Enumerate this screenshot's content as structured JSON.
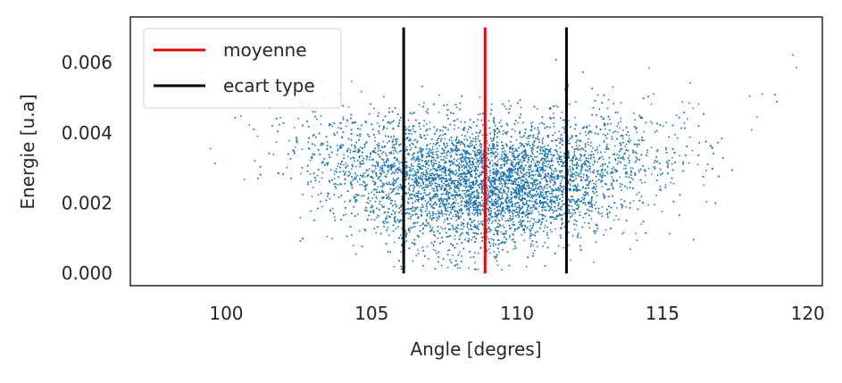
{
  "chart_data": {
    "type": "scatter",
    "title": "",
    "xlabel": "Angle [degres]",
    "ylabel": "Energie [u.a]",
    "xlim": [
      96.7,
      120.5
    ],
    "ylim": [
      -0.00035,
      0.0073
    ],
    "xticks": [
      100,
      105,
      110,
      115,
      120
    ],
    "xtick_labels": [
      "100",
      "105",
      "110",
      "115",
      "120"
    ],
    "yticks": [
      0.0,
      0.002,
      0.004,
      0.006
    ],
    "ytick_labels": [
      "0.000",
      "0.002",
      "0.004",
      "0.006"
    ],
    "grid": false,
    "legend_position": "upper-left",
    "scatter": {
      "name": "",
      "color": "#1f77b4",
      "approx_points": 12000,
      "x_mean": 108.9,
      "x_std": 2.8,
      "y_mean": 0.0025,
      "y_std": 0.0009,
      "y_min": 0.0001,
      "y_max": 0.0072,
      "description": "dense cloud of small scatter points"
    },
    "lines": [
      {
        "name": "moyenne",
        "x": 108.9,
        "y0": 0.0,
        "y1": 0.007,
        "color": "#e8000b"
      },
      {
        "name": "ecart type",
        "x": 106.1,
        "y0": 0.0,
        "y1": 0.007,
        "color": "#000000"
      },
      {
        "name": "ecart type",
        "x": 111.7,
        "y0": 0.0,
        "y1": 0.007,
        "color": "#000000"
      }
    ],
    "legend": [
      {
        "label": "moyenne",
        "color": "#e8000b"
      },
      {
        "label": "ecart type",
        "color": "#000000"
      }
    ]
  }
}
